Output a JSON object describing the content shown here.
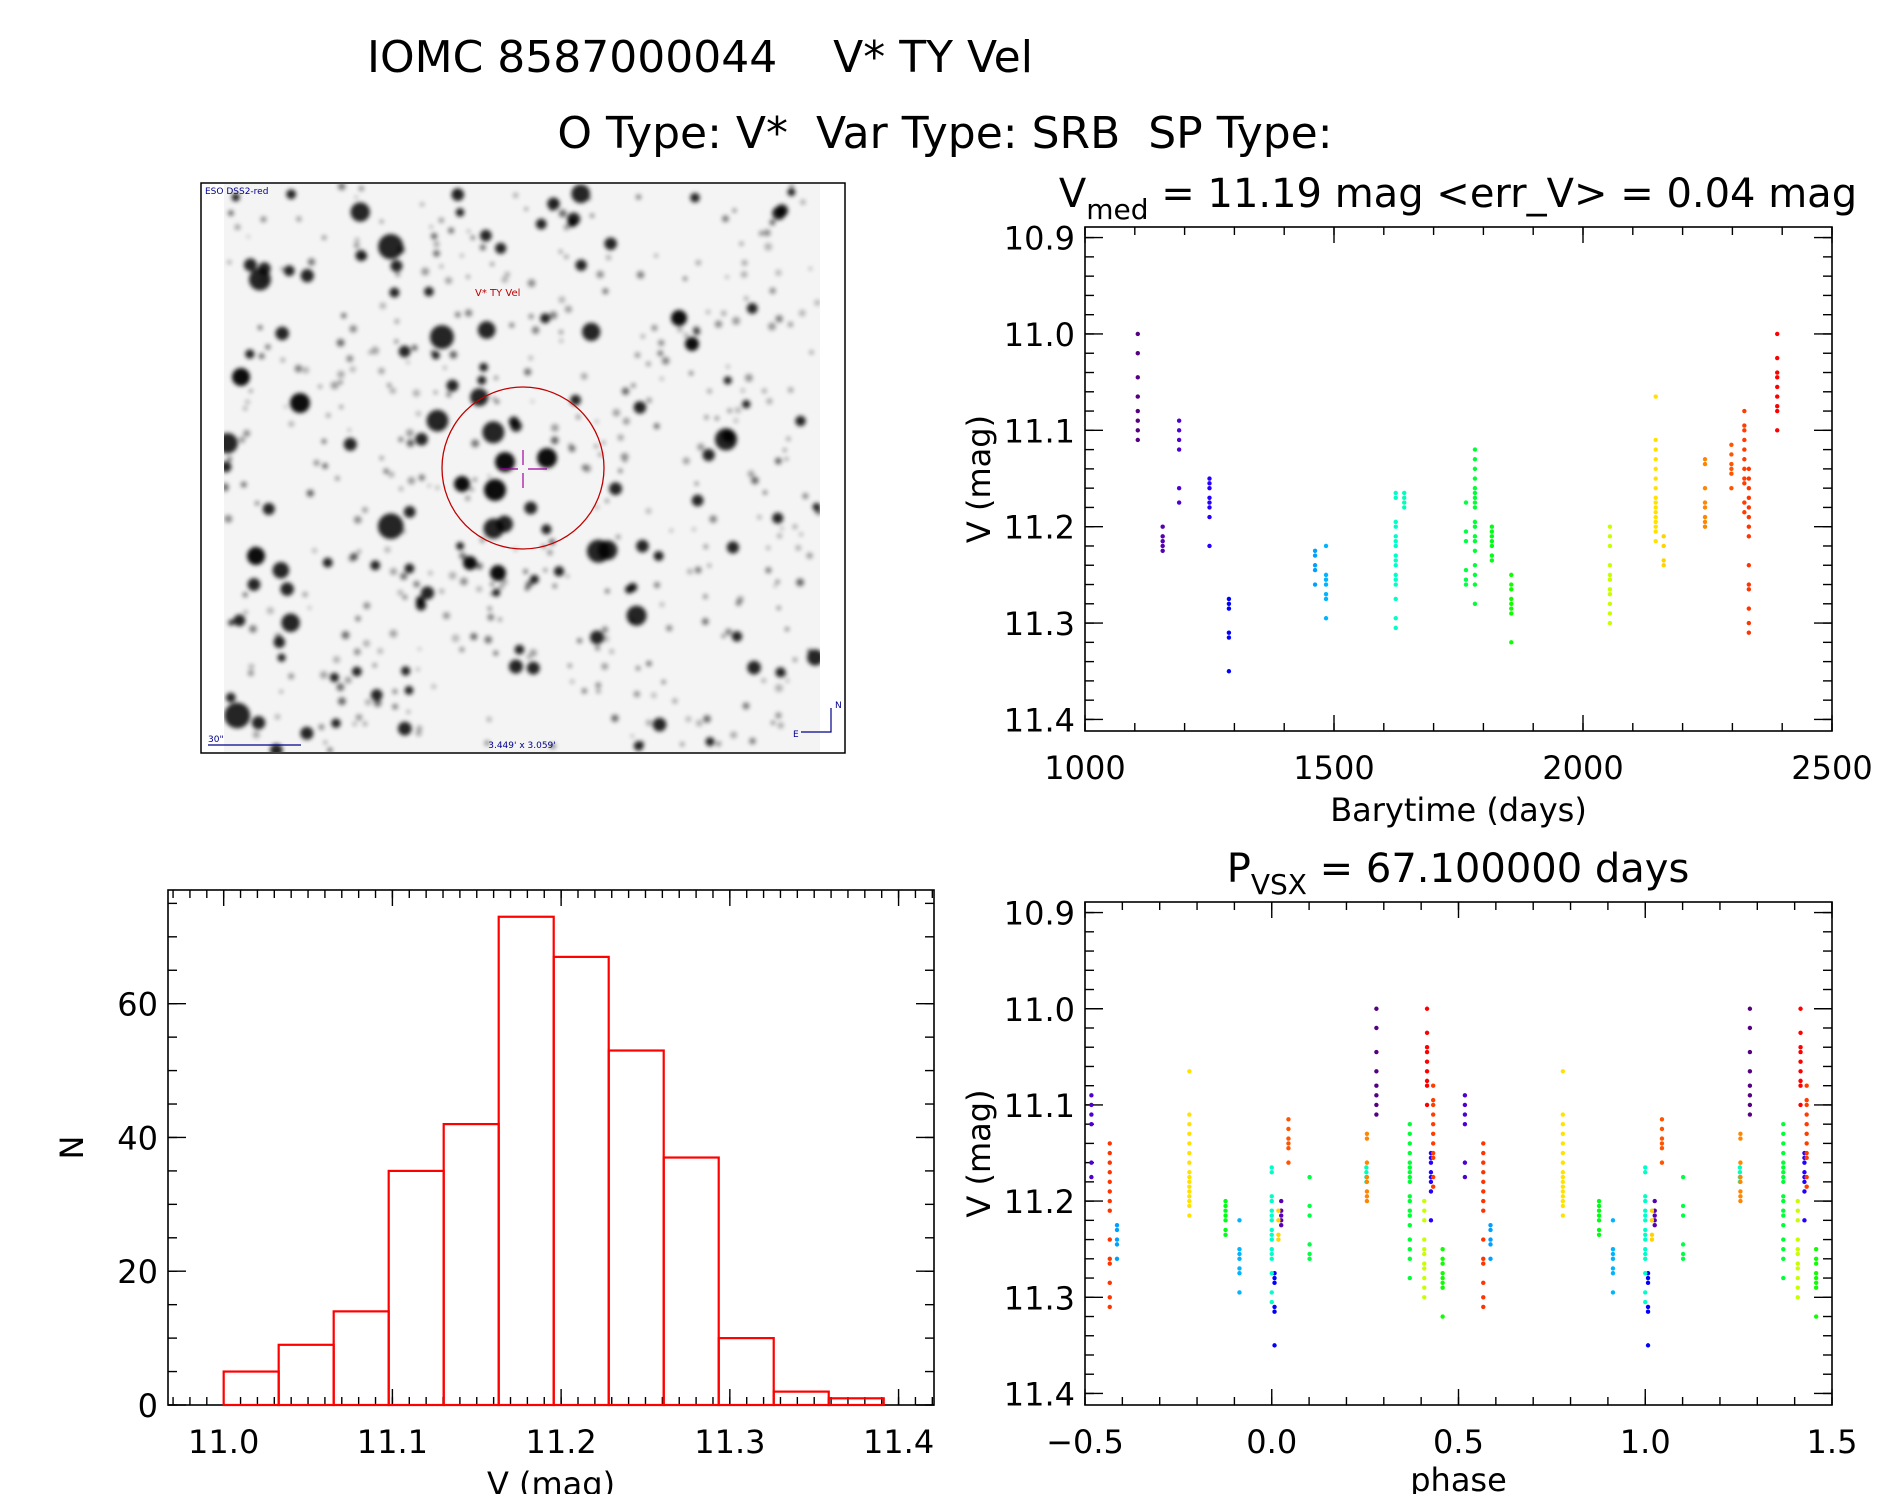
{
  "header": {
    "line1": "IOMC 8587000044    V* TY Vel",
    "line2": "O Type: V*  Var Type: SRB  SP Type:"
  },
  "image_panel": {
    "survey_label": "ESO DSS2-red",
    "target_label": "V* TY Vel",
    "scale_label": "30\"",
    "fov_label": "3.449' x 3.059'",
    "north_label": "N",
    "east_label": "E",
    "circle_color": "#c00000",
    "label_color": "#00008b"
  },
  "chart_data": [
    {
      "id": "light_curve",
      "type": "scatter",
      "title_main": "V",
      "title_sub": "med",
      "title_rest": " = 11.19 mag <err_V> = 0.04 mag",
      "xlabel": "Barytime (days)",
      "ylabel": "V (mag)",
      "xlim": [
        1000,
        2500
      ],
      "ylim": [
        10.889,
        11.412
      ],
      "y_inverted": true,
      "xticks": [
        "1000",
        "1500",
        "2000",
        "2500"
      ],
      "yticks": [
        "10.9",
        "11.0",
        "11.1",
        "11.2",
        "11.3",
        "11.4"
      ],
      "color_scale": "rainbow by time (purple to red)",
      "clusters": [
        {
          "t": 1106,
          "v": [
            11.0,
            11.02,
            11.045,
            11.065,
            11.08,
            11.09,
            11.1,
            11.11
          ]
        },
        {
          "t": 1156,
          "v": [
            11.2,
            11.21,
            11.215,
            11.22,
            11.225
          ]
        },
        {
          "t": 1189,
          "v": [
            11.09,
            11.1,
            11.11,
            11.12,
            11.16,
            11.175
          ]
        },
        {
          "t": 1250,
          "v": [
            11.15,
            11.155,
            11.16,
            11.17,
            11.175,
            11.18,
            11.19,
            11.22
          ]
        },
        {
          "t": 1289,
          "v": [
            11.275,
            11.28,
            11.285,
            11.31,
            11.315,
            11.35
          ]
        },
        {
          "t": 1462,
          "v": [
            11.225,
            11.23,
            11.24,
            11.245,
            11.26
          ]
        },
        {
          "t": 1484,
          "v": [
            11.22,
            11.25,
            11.255,
            11.26,
            11.27,
            11.275,
            11.295
          ]
        },
        {
          "t": 1624,
          "v": [
            11.165,
            11.17,
            11.195,
            11.2,
            11.21,
            11.215,
            11.22,
            11.23,
            11.235,
            11.24,
            11.25,
            11.255,
            11.26,
            11.275,
            11.295,
            11.305
          ]
        },
        {
          "t": 1641,
          "v": [
            11.165,
            11.17,
            11.175,
            11.18
          ]
        },
        {
          "t": 1765,
          "v": [
            11.175,
            11.205,
            11.215,
            11.245,
            11.255,
            11.26
          ]
        },
        {
          "t": 1783,
          "v": [
            11.12,
            11.13,
            11.14,
            11.15,
            11.16,
            11.165,
            11.17,
            11.175,
            11.18,
            11.195,
            11.2,
            11.21,
            11.215,
            11.225,
            11.24,
            11.25,
            11.26,
            11.28
          ]
        },
        {
          "t": 1817,
          "v": [
            11.2,
            11.205,
            11.21,
            11.215,
            11.22,
            11.23,
            11.235
          ]
        },
        {
          "t": 1856,
          "v": [
            11.25,
            11.26,
            11.265,
            11.275,
            11.28,
            11.285,
            11.29,
            11.32
          ]
        },
        {
          "t": 2054,
          "v": [
            11.2,
            11.21,
            11.22,
            11.24,
            11.25,
            11.255,
            11.265,
            11.27,
            11.28,
            11.29,
            11.3
          ]
        },
        {
          "t": 2146,
          "v": [
            11.065,
            11.11,
            11.12,
            11.13,
            11.14,
            11.15,
            11.16,
            11.17,
            11.175,
            11.18,
            11.185,
            11.19,
            11.195,
            11.2,
            11.205,
            11.215
          ]
        },
        {
          "t": 2162,
          "v": [
            11.21,
            11.22,
            11.235,
            11.24
          ]
        },
        {
          "t": 2245,
          "v": [
            11.13,
            11.135,
            11.16,
            11.175,
            11.18,
            11.19,
            11.195,
            11.2
          ]
        },
        {
          "t": 2298,
          "v": [
            11.115,
            11.125,
            11.135,
            11.14,
            11.145,
            11.16
          ]
        },
        {
          "t": 2324,
          "v": [
            11.08,
            11.095,
            11.1,
            11.11,
            11.12,
            11.13,
            11.14,
            11.15,
            11.155,
            11.175,
            11.185
          ]
        },
        {
          "t": 2333,
          "v": [
            11.14,
            11.15,
            11.16,
            11.17,
            11.18,
            11.19,
            11.2,
            11.21,
            11.24,
            11.26,
            11.265,
            11.285,
            11.3,
            11.31
          ]
        },
        {
          "t": 2390,
          "v": [
            11.0,
            11.025,
            11.04,
            11.045,
            11.055,
            11.065,
            11.075,
            11.08,
            11.1
          ]
        }
      ]
    },
    {
      "id": "histogram",
      "type": "bar",
      "xlabel": "V (mag)",
      "ylabel": "N",
      "xlim": [
        10.967,
        11.421
      ],
      "ylim": [
        0,
        77
      ],
      "xticks": [
        "11.0",
        "11.1",
        "11.2",
        "11.3",
        "11.4"
      ],
      "yticks": [
        "0",
        "20",
        "40",
        "60"
      ],
      "bin_start": 11.0,
      "bin_width": 0.0326,
      "counts": [
        5,
        9,
        14,
        35,
        42,
        73,
        67,
        53,
        37,
        10,
        2,
        1
      ],
      "color": "#ff0000"
    },
    {
      "id": "phase_curve",
      "type": "scatter",
      "title_main": "P",
      "title_sub": "VSX",
      "title_rest": " = 67.100000 days",
      "period": 67.1,
      "xlabel": "phase",
      "ylabel": "V (mag)",
      "xlim": [
        -0.5,
        1.5
      ],
      "ylim": [
        10.889,
        11.412
      ],
      "y_inverted": true,
      "xticks": [
        "−0.5",
        "0.0",
        "0.5",
        "1.0",
        "1.5"
      ],
      "yticks": [
        "10.9",
        "11.0",
        "11.1",
        "11.2",
        "11.3",
        "11.4"
      ]
    }
  ]
}
